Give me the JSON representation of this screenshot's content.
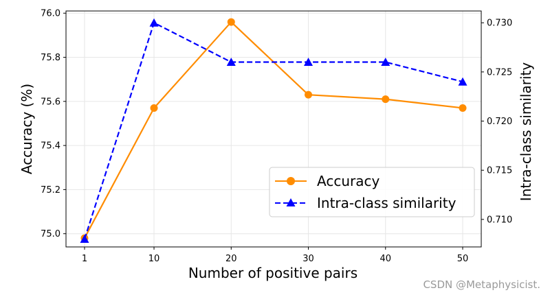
{
  "chart_data": {
    "type": "line",
    "x": [
      1,
      10,
      20,
      30,
      40,
      50
    ],
    "x_tick_labels": [
      "1",
      "10",
      "20",
      "30",
      "40",
      "50"
    ],
    "xlabel": "Number of positive pairs",
    "ylabel_left": "Accuracy (%)",
    "ylabel_right": "Intra-class similarity",
    "ylim_left": [
      74.94,
      76.01
    ],
    "ylim_right": [
      0.7072,
      0.7312
    ],
    "yticks_left": [
      "75.0",
      "75.2",
      "75.4",
      "75.6",
      "75.8",
      "76.0"
    ],
    "yticks_right": [
      "0.710",
      "0.715",
      "0.720",
      "0.725",
      "0.730"
    ],
    "grid": true,
    "legend_position": "lower right",
    "series": [
      {
        "name": "Accuracy",
        "axis": "left",
        "values": [
          74.98,
          75.57,
          75.96,
          75.63,
          75.61,
          75.57
        ],
        "color": "#ff8c00",
        "line_style": "solid",
        "marker": "circle"
      },
      {
        "name": "Intra-class similarity",
        "axis": "right",
        "values": [
          0.708,
          0.73,
          0.726,
          0.726,
          0.726,
          0.724
        ],
        "color": "#0000ff",
        "line_style": "dashed",
        "marker": "triangle"
      }
    ]
  },
  "watermark": "CSDN @Metaphysicist."
}
